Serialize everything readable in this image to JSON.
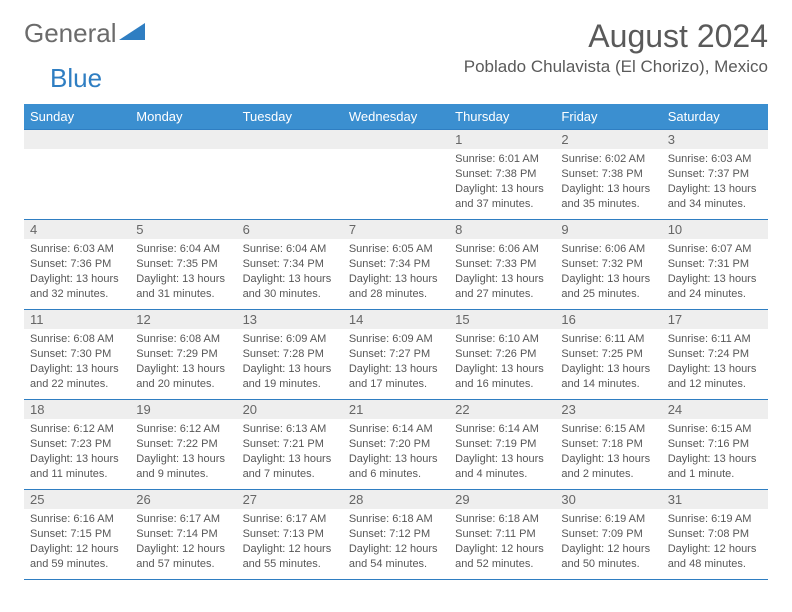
{
  "logo": {
    "word1": "General",
    "word2": "Blue"
  },
  "header": {
    "month_title": "August 2024",
    "location": "Poblado Chulavista (El Chorizo), Mexico"
  },
  "colors": {
    "header_bg": "#3b8fd0",
    "border": "#2f7ec2",
    "daynum_bg": "#eeeeee",
    "text": "#575757"
  },
  "day_names": [
    "Sunday",
    "Monday",
    "Tuesday",
    "Wednesday",
    "Thursday",
    "Friday",
    "Saturday"
  ],
  "weeks": [
    [
      null,
      null,
      null,
      null,
      {
        "n": "1",
        "sr": "6:01 AM",
        "ss": "7:38 PM",
        "dl": "13 hours and 37 minutes."
      },
      {
        "n": "2",
        "sr": "6:02 AM",
        "ss": "7:38 PM",
        "dl": "13 hours and 35 minutes."
      },
      {
        "n": "3",
        "sr": "6:03 AM",
        "ss": "7:37 PM",
        "dl": "13 hours and 34 minutes."
      }
    ],
    [
      {
        "n": "4",
        "sr": "6:03 AM",
        "ss": "7:36 PM",
        "dl": "13 hours and 32 minutes."
      },
      {
        "n": "5",
        "sr": "6:04 AM",
        "ss": "7:35 PM",
        "dl": "13 hours and 31 minutes."
      },
      {
        "n": "6",
        "sr": "6:04 AM",
        "ss": "7:34 PM",
        "dl": "13 hours and 30 minutes."
      },
      {
        "n": "7",
        "sr": "6:05 AM",
        "ss": "7:34 PM",
        "dl": "13 hours and 28 minutes."
      },
      {
        "n": "8",
        "sr": "6:06 AM",
        "ss": "7:33 PM",
        "dl": "13 hours and 27 minutes."
      },
      {
        "n": "9",
        "sr": "6:06 AM",
        "ss": "7:32 PM",
        "dl": "13 hours and 25 minutes."
      },
      {
        "n": "10",
        "sr": "6:07 AM",
        "ss": "7:31 PM",
        "dl": "13 hours and 24 minutes."
      }
    ],
    [
      {
        "n": "11",
        "sr": "6:08 AM",
        "ss": "7:30 PM",
        "dl": "13 hours and 22 minutes."
      },
      {
        "n": "12",
        "sr": "6:08 AM",
        "ss": "7:29 PM",
        "dl": "13 hours and 20 minutes."
      },
      {
        "n": "13",
        "sr": "6:09 AM",
        "ss": "7:28 PM",
        "dl": "13 hours and 19 minutes."
      },
      {
        "n": "14",
        "sr": "6:09 AM",
        "ss": "7:27 PM",
        "dl": "13 hours and 17 minutes."
      },
      {
        "n": "15",
        "sr": "6:10 AM",
        "ss": "7:26 PM",
        "dl": "13 hours and 16 minutes."
      },
      {
        "n": "16",
        "sr": "6:11 AM",
        "ss": "7:25 PM",
        "dl": "13 hours and 14 minutes."
      },
      {
        "n": "17",
        "sr": "6:11 AM",
        "ss": "7:24 PM",
        "dl": "13 hours and 12 minutes."
      }
    ],
    [
      {
        "n": "18",
        "sr": "6:12 AM",
        "ss": "7:23 PM",
        "dl": "13 hours and 11 minutes."
      },
      {
        "n": "19",
        "sr": "6:12 AM",
        "ss": "7:22 PM",
        "dl": "13 hours and 9 minutes."
      },
      {
        "n": "20",
        "sr": "6:13 AM",
        "ss": "7:21 PM",
        "dl": "13 hours and 7 minutes."
      },
      {
        "n": "21",
        "sr": "6:14 AM",
        "ss": "7:20 PM",
        "dl": "13 hours and 6 minutes."
      },
      {
        "n": "22",
        "sr": "6:14 AM",
        "ss": "7:19 PM",
        "dl": "13 hours and 4 minutes."
      },
      {
        "n": "23",
        "sr": "6:15 AM",
        "ss": "7:18 PM",
        "dl": "13 hours and 2 minutes."
      },
      {
        "n": "24",
        "sr": "6:15 AM",
        "ss": "7:16 PM",
        "dl": "13 hours and 1 minute."
      }
    ],
    [
      {
        "n": "25",
        "sr": "6:16 AM",
        "ss": "7:15 PM",
        "dl": "12 hours and 59 minutes."
      },
      {
        "n": "26",
        "sr": "6:17 AM",
        "ss": "7:14 PM",
        "dl": "12 hours and 57 minutes."
      },
      {
        "n": "27",
        "sr": "6:17 AM",
        "ss": "7:13 PM",
        "dl": "12 hours and 55 minutes."
      },
      {
        "n": "28",
        "sr": "6:18 AM",
        "ss": "7:12 PM",
        "dl": "12 hours and 54 minutes."
      },
      {
        "n": "29",
        "sr": "6:18 AM",
        "ss": "7:11 PM",
        "dl": "12 hours and 52 minutes."
      },
      {
        "n": "30",
        "sr": "6:19 AM",
        "ss": "7:09 PM",
        "dl": "12 hours and 50 minutes."
      },
      {
        "n": "31",
        "sr": "6:19 AM",
        "ss": "7:08 PM",
        "dl": "12 hours and 48 minutes."
      }
    ]
  ],
  "labels": {
    "sunrise": "Sunrise: ",
    "sunset": "Sunset: ",
    "daylight": "Daylight: "
  }
}
